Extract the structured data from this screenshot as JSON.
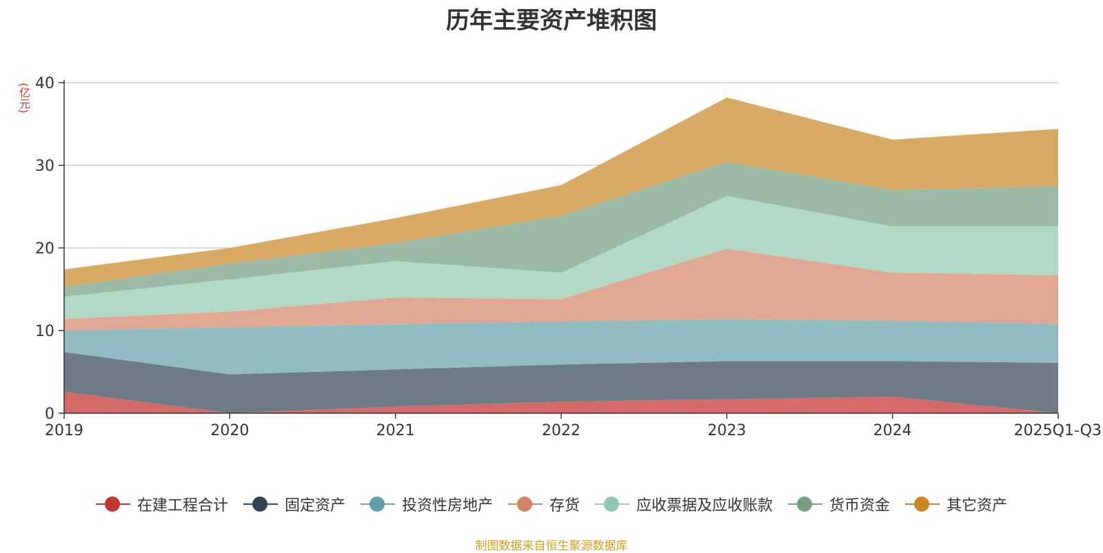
{
  "chart_data": {
    "type": "area",
    "stacked": true,
    "title": "历年主要资产堆积图",
    "ylabel": "(亿元)",
    "ylim": [
      0,
      40
    ],
    "yticks": [
      0,
      10,
      20,
      30,
      40
    ],
    "categories": [
      "2019",
      "2020",
      "2021",
      "2022",
      "2023",
      "2024",
      "2025Q1-Q3"
    ],
    "series": [
      {
        "name": "在建工程合计",
        "color": "#c23531",
        "area_color": "#d46b69",
        "values": [
          2.6,
          0.0,
          0.8,
          1.4,
          1.7,
          2.0,
          0.0
        ]
      },
      {
        "name": "固定资产",
        "color": "#2f4554",
        "area_color": "#6d7b87",
        "values": [
          4.8,
          4.7,
          4.5,
          4.5,
          4.6,
          4.3,
          6.1
        ]
      },
      {
        "name": "投资性房地产",
        "color": "#61a0a8",
        "area_color": "#90bcc2",
        "values": [
          2.6,
          5.7,
          5.5,
          5.2,
          5.1,
          4.9,
          4.7
        ]
      },
      {
        "name": "存货",
        "color": "#d48265",
        "area_color": "#e0a793",
        "values": [
          1.4,
          1.9,
          3.2,
          2.7,
          8.5,
          5.8,
          5.9
        ]
      },
      {
        "name": "应收票据及应收账款",
        "color": "#91c7ae",
        "area_color": "#b2d8c6",
        "values": [
          2.7,
          3.9,
          4.4,
          3.2,
          6.4,
          5.6,
          5.9
        ]
      },
      {
        "name": "货币资金",
        "color": "#749f83",
        "area_color": "#9cb9a5",
        "values": [
          1.2,
          1.9,
          2.2,
          6.9,
          4.1,
          4.4,
          4.9
        ]
      },
      {
        "name": "其它资产",
        "color": "#ca8622",
        "area_color": "#d8a963",
        "values": [
          2.1,
          1.9,
          3.0,
          3.7,
          7.8,
          6.1,
          6.9
        ]
      }
    ]
  },
  "source_note": "制图数据来自恒生聚源数据库"
}
